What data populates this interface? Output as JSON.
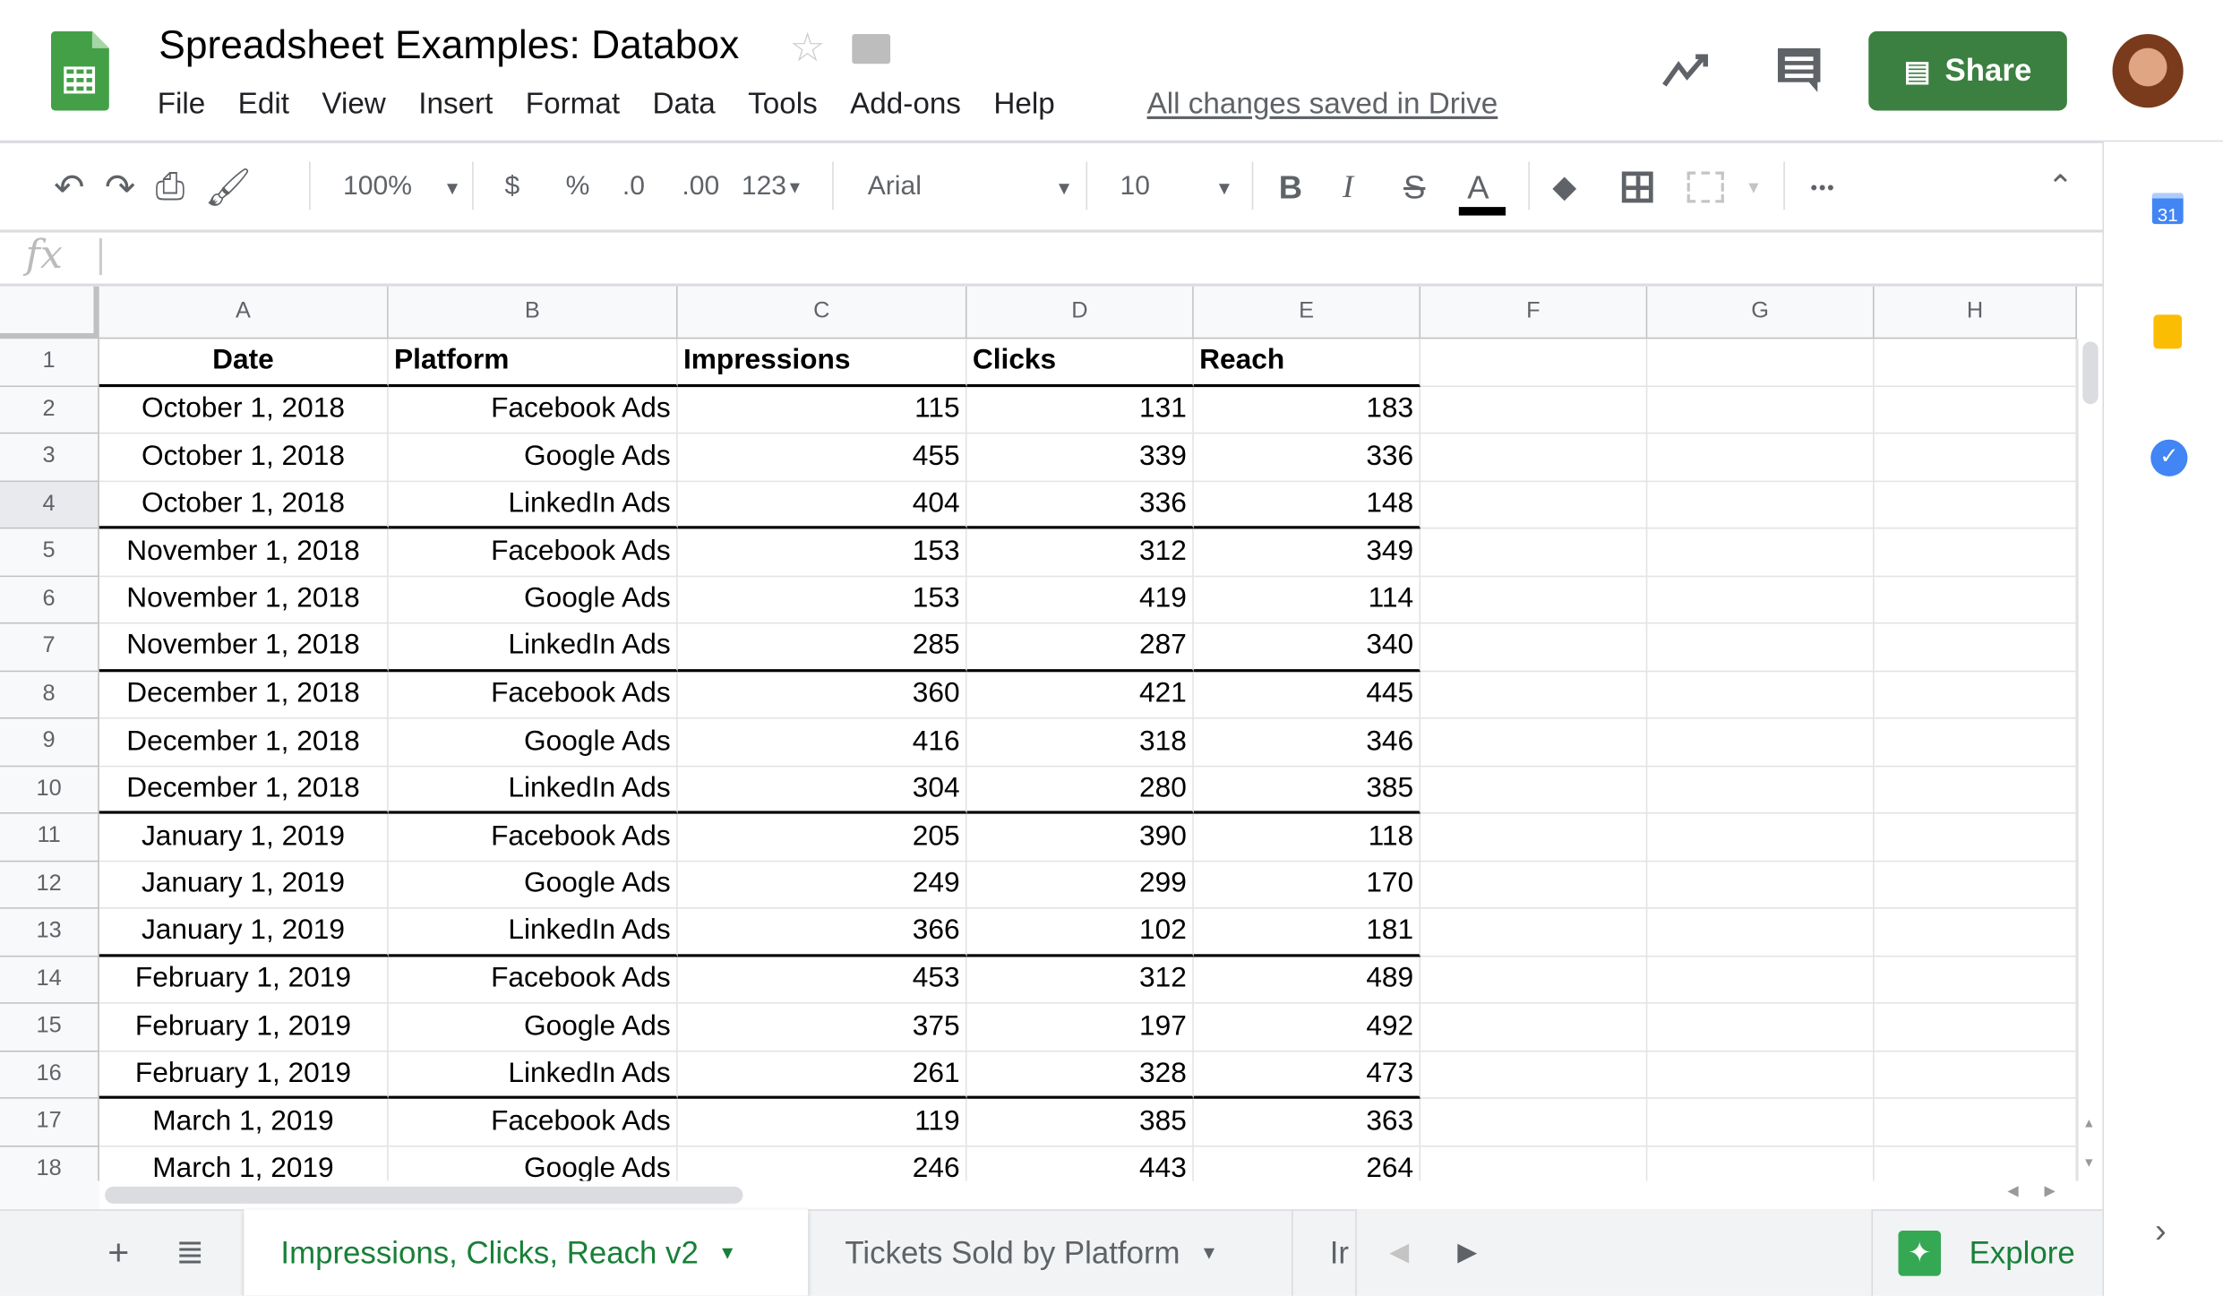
{
  "app": {
    "title": "Spreadsheet Examples: Databox",
    "save_status": "All changes saved in Drive",
    "share_label": "Share",
    "brand_color": "#3b8040"
  },
  "menu": [
    "File",
    "Edit",
    "View",
    "Insert",
    "Format",
    "Data",
    "Tools",
    "Add-ons",
    "Help"
  ],
  "toolbar": {
    "zoom": "100%",
    "currency": "$",
    "percent": "%",
    "dec_decrease": ".0",
    "dec_increase": ".00",
    "more_formats": "123",
    "font": "Arial",
    "font_size": "10",
    "bold": "B",
    "italic": "I",
    "strike": "S",
    "text_color": "A",
    "more": "•••"
  },
  "formula_bar": {
    "fx": "fx",
    "value": ""
  },
  "columns": [
    "A",
    "B",
    "C",
    "D",
    "E",
    "F",
    "G",
    "H"
  ],
  "header_row": [
    "Date",
    "Platform",
    "Impressions",
    "Clicks",
    "Reach"
  ],
  "rows": [
    [
      "October 1, 2018",
      "Facebook Ads",
      "115",
      "131",
      "183"
    ],
    [
      "October 1, 2018",
      "Google Ads",
      "455",
      "339",
      "336"
    ],
    [
      "October 1, 2018",
      "LinkedIn Ads",
      "404",
      "336",
      "148"
    ],
    [
      "November 1, 2018",
      "Facebook Ads",
      "153",
      "312",
      "349"
    ],
    [
      "November 1, 2018",
      "Google Ads",
      "153",
      "419",
      "114"
    ],
    [
      "November 1, 2018",
      "LinkedIn Ads",
      "285",
      "287",
      "340"
    ],
    [
      "December 1, 2018",
      "Facebook Ads",
      "360",
      "421",
      "445"
    ],
    [
      "December 1, 2018",
      "Google Ads",
      "416",
      "318",
      "346"
    ],
    [
      "December 1, 2018",
      "LinkedIn Ads",
      "304",
      "280",
      "385"
    ],
    [
      "January 1, 2019",
      "Facebook Ads",
      "205",
      "390",
      "118"
    ],
    [
      "January 1, 2019",
      "Google Ads",
      "249",
      "299",
      "170"
    ],
    [
      "January 1, 2019",
      "LinkedIn Ads",
      "366",
      "102",
      "181"
    ],
    [
      "February 1, 2019",
      "Facebook Ads",
      "453",
      "312",
      "489"
    ],
    [
      "February 1, 2019",
      "Google Ads",
      "375",
      "197",
      "492"
    ],
    [
      "February 1, 2019",
      "LinkedIn Ads",
      "261",
      "328",
      "473"
    ],
    [
      "March 1, 2019",
      "Facebook Ads",
      "119",
      "385",
      "363"
    ],
    [
      "March 1, 2019",
      "Google Ads",
      "246",
      "443",
      "264"
    ]
  ],
  "row_numbers": [
    "1",
    "2",
    "3",
    "4",
    "5",
    "6",
    "7",
    "8",
    "9",
    "10",
    "11",
    "12",
    "13",
    "14",
    "15",
    "16",
    "17",
    "18"
  ],
  "sheets": {
    "tabs": [
      {
        "label": "Impressions, Clicks, Reach v2",
        "active": true
      },
      {
        "label": "Tickets Sold by Platform",
        "active": false
      },
      {
        "label": "Ir",
        "active": false
      }
    ],
    "explore_label": "Explore"
  },
  "sidebar": {
    "calendar_day": "31"
  }
}
